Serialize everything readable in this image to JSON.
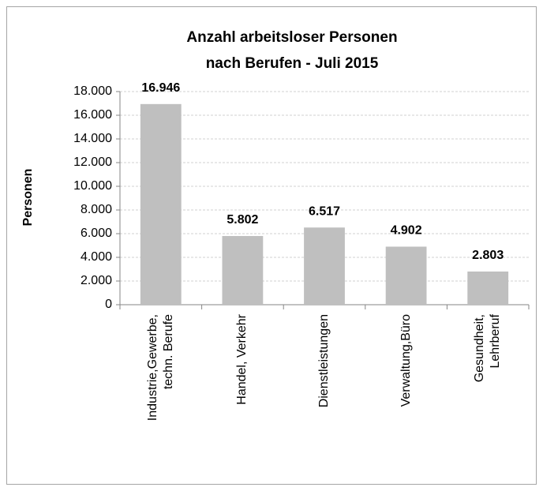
{
  "chart_data": {
    "type": "bar",
    "title": "Anzahl arbeitsloser Personen",
    "subtitle": "nach Berufen - Juli 2015",
    "y_label": "Personen",
    "categories": [
      "Industrie,Gewerbe,\ntechn. Berufe",
      "Handel, Verkehr",
      "Dienstleistungen",
      "Verwaltung,Büro",
      "Gesundheit,\nLehrberuf"
    ],
    "values": [
      16946,
      5802,
      6517,
      4902,
      2803
    ],
    "value_labels": [
      "16.946",
      "5.802",
      "6.517",
      "4.902",
      "2.803"
    ],
    "color": "#bfbfbf",
    "ylim": [
      0,
      18000
    ],
    "yticks": [
      0,
      {
        "value": 2000,
        "label": "2.000"
      },
      {
        "value": 4000,
        "label": "4.000"
      },
      {
        "value": 6000,
        "label": "6.000"
      },
      {
        "value": 8000,
        "label": "8.000"
      },
      {
        "value": 10000,
        "label": "10.000"
      },
      {
        "value": 12000,
        "label": "12.000"
      },
      {
        "value": 14000,
        "label": "14.000"
      },
      {
        "value": 16000,
        "label": "16.000"
      },
      {
        "value": 18000,
        "label": "18.000"
      }
    ],
    "grid": true
  }
}
